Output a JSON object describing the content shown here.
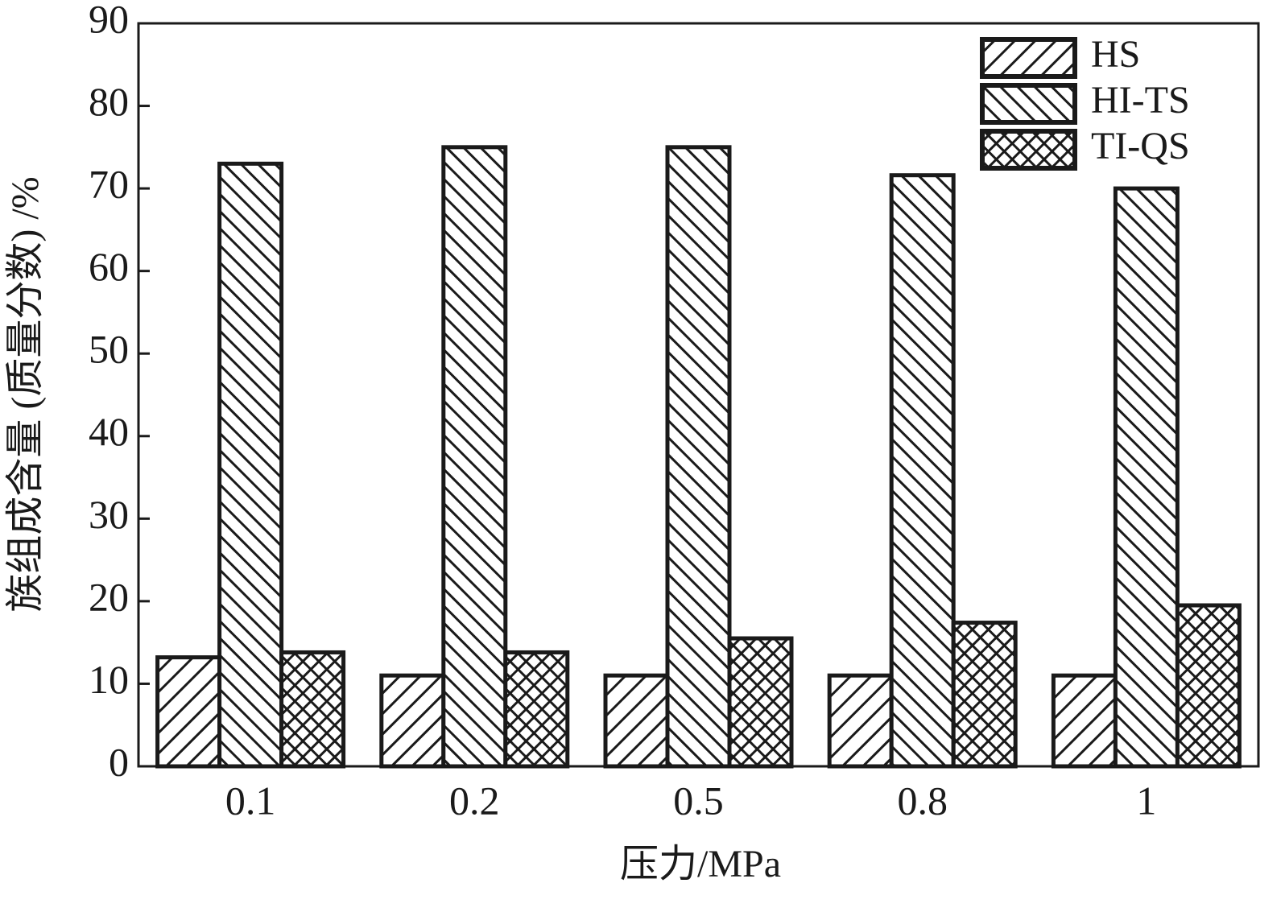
{
  "chart_data": {
    "type": "bar",
    "x_label": "压力/MPa",
    "y_label": "族组成含量 (质量分数) /%",
    "categories": [
      "0.1",
      "0.2",
      "0.5",
      "0.8",
      "1"
    ],
    "series": [
      {
        "name": "HS",
        "color": "#1a1a1a",
        "hatch": "/",
        "values": [
          13.2,
          11,
          11,
          11,
          11
        ]
      },
      {
        "name": "HI-TS",
        "color": "#1a1a1a",
        "hatch": "\\",
        "values": [
          73,
          75,
          75,
          71.6,
          70
        ]
      },
      {
        "name": "TI-QS",
        "color": "#1a1a1a",
        "hatch": "x",
        "values": [
          13.8,
          13.8,
          15.5,
          17.4,
          19.5
        ]
      }
    ],
    "ylim": [
      0,
      90
    ],
    "yticks": [
      0,
      10,
      20,
      30,
      40,
      50,
      60,
      70,
      80,
      90
    ],
    "legend": "upper-right"
  }
}
